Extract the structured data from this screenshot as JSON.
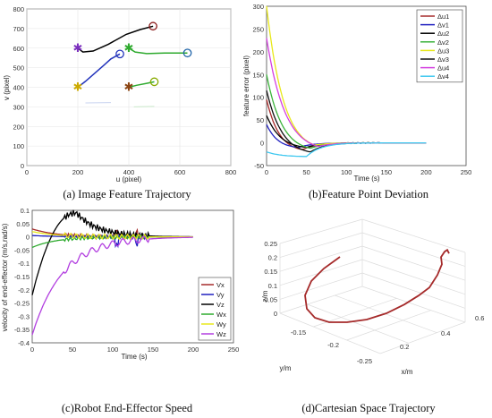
{
  "chart_data": [
    {
      "id": "a",
      "type": "line",
      "caption": "(a) Image Feature Trajectory",
      "xlabel": "u (pixel)",
      "ylabel": "v (pixel)",
      "xlim": [
        0,
        800
      ],
      "ylim": [
        0,
        800
      ],
      "xticks": [
        0,
        200,
        400,
        600,
        800
      ],
      "yticks": [
        0,
        100,
        200,
        300,
        400,
        500,
        600,
        700,
        800
      ],
      "series": [
        {
          "color": "#000000",
          "points": [
            [
              200,
              600
            ],
            [
              220,
              580
            ],
            [
              260,
              585
            ],
            [
              320,
              620
            ],
            [
              390,
              670
            ],
            [
              445,
              695
            ],
            [
              495,
              712
            ]
          ],
          "start_marker": "#7b2fbe",
          "end_marker": "#8b1a1a"
        },
        {
          "color": "#2233bb",
          "points": [
            [
              200,
              400
            ],
            [
              230,
              430
            ],
            [
              265,
              470
            ],
            [
              300,
              510
            ],
            [
              330,
              545
            ],
            [
              365,
              570
            ]
          ],
          "start_marker": "#ccaa00",
          "end_marker": "#2233bb"
        },
        {
          "color": "#2eaa2e",
          "points": [
            [
              400,
              600
            ],
            [
              425,
              580
            ],
            [
              470,
              572
            ],
            [
              540,
              575
            ],
            [
              630,
              575
            ]
          ],
          "start_marker": "#2eaa2e",
          "end_marker": "#2266aa"
        },
        {
          "color": "#2eaa2e",
          "points": [
            [
              400,
              400
            ],
            [
              430,
              410
            ],
            [
              470,
              420
            ],
            [
              500,
              428
            ]
          ],
          "start_marker": "#8b4513",
          "end_marker": "#88aa00"
        }
      ]
    },
    {
      "id": "b",
      "type": "line",
      "caption": "(b)Feature Point Deviation",
      "xlabel": "Time (s)",
      "ylabel": "feature error (pixel)",
      "xlim": [
        0,
        250
      ],
      "ylim": [
        -50,
        300
      ],
      "xticks": [
        0,
        50,
        100,
        150,
        200,
        250
      ],
      "yticks": [
        -50,
        0,
        50,
        100,
        150,
        200,
        250,
        300
      ],
      "legend_position": "top-right",
      "series": [
        {
          "name": "Δu1",
          "color": "#a52a2a",
          "y0": 95,
          "tmin": 45,
          "ymin": -15
        },
        {
          "name": "Δv1",
          "color": "#1f1fbf",
          "y0": 40,
          "tmin": 40,
          "ymin": -10
        },
        {
          "name": "Δu2",
          "color": "#000000",
          "y0": 60,
          "tmin": 50,
          "ymin": -10
        },
        {
          "name": "Δv2",
          "color": "#3cb33c",
          "y0": 150,
          "tmin": 55,
          "ymin": -12
        },
        {
          "name": "Δu3",
          "color": "#e8e81a",
          "y0": 300,
          "tmin": 60,
          "ymin": -5
        },
        {
          "name": "Δv3",
          "color": "#111111",
          "y0": 115,
          "tmin": 55,
          "ymin": -20
        },
        {
          "name": "Δu4",
          "color": "#d43fe0",
          "y0": 230,
          "tmin": 65,
          "ymin": -8
        },
        {
          "name": "Δv4",
          "color": "#3fc8f0",
          "y0": -20,
          "tmin": 50,
          "ymin": -30
        }
      ]
    },
    {
      "id": "c",
      "type": "line",
      "caption": "(c)Robot End-Effector Speed",
      "xlabel": "Time (s)",
      "ylabel": "velocity of end-effector (m/s,rad/s)",
      "xlim": [
        0,
        250
      ],
      "ylim": [
        -0.4,
        0.1
      ],
      "xticks": [
        0,
        50,
        100,
        150,
        200,
        250
      ],
      "yticks": [
        -0.4,
        -0.35,
        -0.3,
        -0.25,
        -0.2,
        -0.15,
        -0.1,
        -0.05,
        0,
        0.05,
        0.1
      ],
      "ytick_labels": [
        "-0.4",
        "-0.35",
        "-0.3",
        "-0.25",
        "-0.2",
        "-0.15",
        "-0.1",
        "-0.05",
        "0",
        "0.05",
        "0.1"
      ],
      "legend_position": "bottom-right",
      "series": [
        {
          "name": "Vx",
          "color": "#a52a2a",
          "y0": 0.03
        },
        {
          "name": "Vy",
          "color": "#1f1fbf",
          "y0": 0.005
        },
        {
          "name": "Vz",
          "color": "#000000",
          "y0": -0.22,
          "peak_t": 55,
          "peak": 0.09
        },
        {
          "name": "Wx",
          "color": "#2eaa2e",
          "y0": -0.04
        },
        {
          "name": "Wy",
          "color": "#e8e81a",
          "y0": 0.02
        },
        {
          "name": "Wz",
          "color": "#b23fe0",
          "y0": -0.37
        }
      ]
    },
    {
      "id": "d",
      "type": "line",
      "caption": "(d)Cartesian Space Trajectory",
      "xlabel": "x/m",
      "ylabel": "y/m",
      "zlabel": "z/m",
      "zticks": [
        0,
        0.05,
        0.1,
        0.15,
        0.2,
        0.25
      ],
      "zlim": [
        0,
        0.25
      ],
      "yticks": [
        -0.25,
        -0.2,
        -0.15
      ],
      "xticks": [
        0.2,
        0.4,
        0.6
      ],
      "series": [
        {
          "color": "#a52a2a",
          "description_only": true
        }
      ]
    }
  ],
  "labels": {
    "a_x": "u (pixel)",
    "a_y": "v (pixel)",
    "b_x": "Time (s)",
    "b_y": "feature error (pixel)",
    "c_x": "Time (s)",
    "c_y": "velocity of end-effector (m/s,rad/s)",
    "d_x": "x/m",
    "d_y": "y/m",
    "d_z": "z/m"
  },
  "captions": {
    "a": "(a) Image Feature Trajectory",
    "b": "(b)Feature Point Deviation",
    "c": "(c)Robot End-Effector Speed",
    "d": "(d)Cartesian Space Trajectory"
  }
}
